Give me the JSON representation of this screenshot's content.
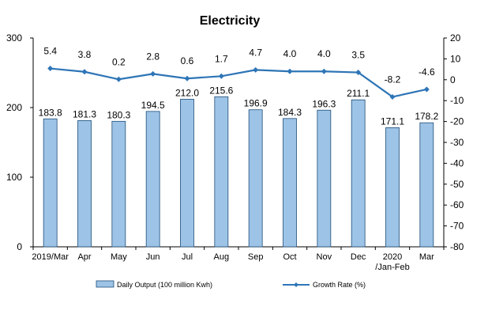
{
  "chart_data": {
    "type": "bar",
    "title": "Electricity",
    "categories": [
      [
        "2019/Mar"
      ],
      [
        "Apr"
      ],
      [
        "May"
      ],
      [
        "Jun"
      ],
      [
        "Jul"
      ],
      [
        "Aug"
      ],
      [
        "Sep"
      ],
      [
        "Oct"
      ],
      [
        "Nov"
      ],
      [
        "Dec"
      ],
      [
        "2020",
        "/Jan-Feb"
      ],
      [
        "Mar"
      ]
    ],
    "series": [
      {
        "name": "Daily Output (100 million Kwh)",
        "type": "bar",
        "axis": "left",
        "color": "#9DC3E6",
        "values": [
          183.8,
          181.3,
          180.3,
          194.5,
          212.0,
          215.6,
          196.9,
          184.3,
          196.3,
          211.1,
          171.1,
          178.2
        ]
      },
      {
        "name": "Growth Rate (%)",
        "type": "line",
        "axis": "right",
        "color": "#2E75B6",
        "values": [
          5.4,
          3.8,
          0.2,
          2.8,
          0.6,
          1.7,
          4.7,
          4.0,
          4.0,
          3.5,
          -8.2,
          -4.6
        ]
      }
    ],
    "y_left": {
      "min": 0,
      "max": 300,
      "ticks": [
        0,
        100,
        200,
        300
      ]
    },
    "y_right": {
      "min": -80,
      "max": 20,
      "ticks": [
        20,
        10,
        0,
        -10,
        -20,
        -30,
        -40,
        -50,
        -60,
        -70,
        -80
      ]
    },
    "grid": false,
    "legend_position": "bottom"
  }
}
